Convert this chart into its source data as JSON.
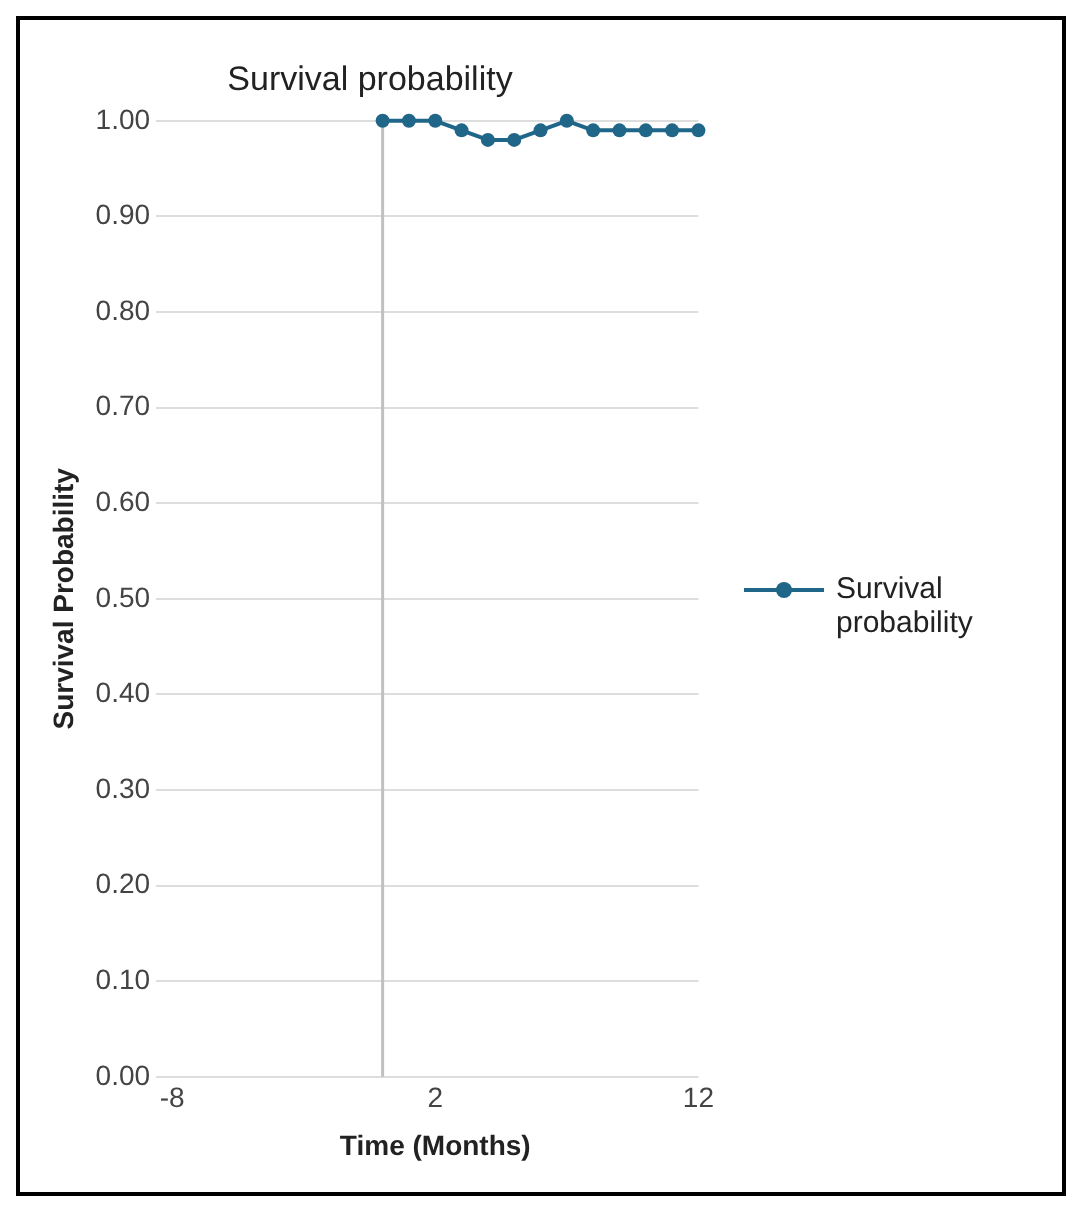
{
  "chart_data": {
    "type": "line",
    "title": "Survival probability",
    "xlabel": "Time (Months)",
    "ylabel": "Survival Probability",
    "x": [
      0,
      1,
      2,
      3,
      4,
      5,
      6,
      7,
      8,
      9,
      10,
      11,
      12
    ],
    "series": [
      {
        "name": "Survival probability",
        "color": "#1f6688",
        "values": [
          1.0,
          1.0,
          1.0,
          0.99,
          0.98,
          0.98,
          0.99,
          1.0,
          0.99,
          0.99,
          0.99,
          0.99,
          0.99
        ]
      }
    ],
    "xlim": [
      -8,
      12
    ],
    "xticks": [
      -8,
      2,
      12
    ],
    "ylim": [
      0,
      1
    ],
    "yticks": [
      {
        "value": 0,
        "label": "0.00"
      },
      {
        "value": 0.1,
        "label": "0.10"
      },
      {
        "value": 0.2,
        "label": "0.20"
      },
      {
        "value": 0.3,
        "label": "0.30"
      },
      {
        "value": 0.4,
        "label": "0.40"
      },
      {
        "value": 0.5,
        "label": "0.50"
      },
      {
        "value": 0.6,
        "label": "0.60"
      },
      {
        "value": 0.7,
        "label": "0.70"
      },
      {
        "value": 0.8,
        "label": "0.80"
      },
      {
        "value": 0.9,
        "label": "0.90"
      },
      {
        "value": 1,
        "label": "1.00"
      }
    ],
    "ref_lines": [
      {
        "axis": "x",
        "value": 0,
        "color": "#c0c0c0"
      }
    ],
    "grid": "y",
    "legend": "right",
    "marker": "circle",
    "line_style": "solid"
  }
}
